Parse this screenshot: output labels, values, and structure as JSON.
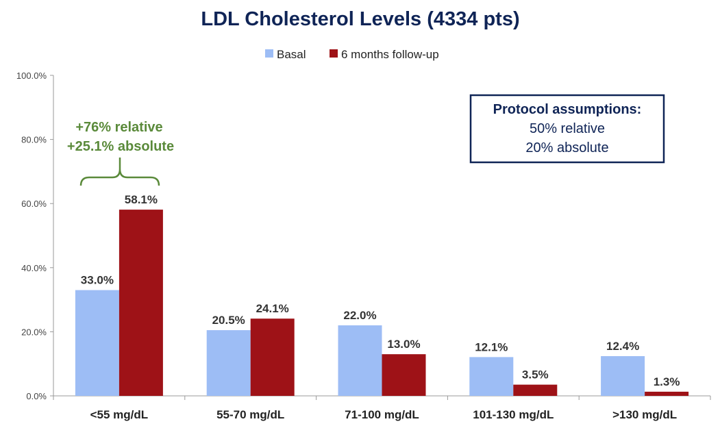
{
  "chart_data": {
    "type": "bar",
    "title": "LDL Cholesterol Levels (4334 pts)",
    "categories": [
      "<55 mg/dL",
      "55-70 mg/dL",
      "71-100 mg/dL",
      "101-130 mg/dL",
      ">130 mg/dL"
    ],
    "series": [
      {
        "name": "Basal",
        "values": [
          33.0,
          20.5,
          22.0,
          12.1,
          12.4
        ],
        "labels": [
          "33.0%",
          "20.5%",
          "22.0%",
          "12.1%",
          "12.4%"
        ]
      },
      {
        "name": "6 months follow-up",
        "values": [
          58.1,
          24.1,
          13.0,
          3.5,
          1.3
        ],
        "labels": [
          "58.1%",
          "24.1%",
          "13.0%",
          "3.5%",
          "1.3%"
        ]
      }
    ],
    "colors": {
      "Basal": "#9dbdf5",
      "6 months follow-up": "#9e1217"
    },
    "ylim": [
      0,
      100
    ],
    "yticks": [
      "0.0%",
      "20.0%",
      "40.0%",
      "60.0%",
      "80.0%",
      "100.0%"
    ],
    "grid": false,
    "legend_position": "top-center",
    "annotations": {
      "bracket_text": [
        "+76%  relative",
        "+25.1%  absolute"
      ],
      "bracket_color": "#5a8a3a",
      "protocol_box": {
        "title": "Protocol assumptions:",
        "lines": [
          "50% relative",
          "20% absolute"
        ],
        "border_color": "#0f2456"
      }
    }
  }
}
